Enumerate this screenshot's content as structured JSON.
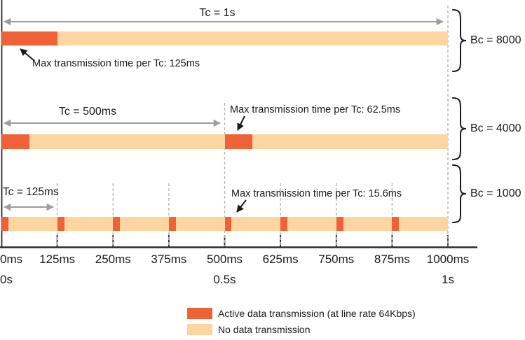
{
  "diagram": {
    "description": "Traffic shaping committed burst timing diagram",
    "total_ms": 1000
  },
  "rows": [
    {
      "tc_label": "Tc = 1s",
      "annotation": "Max transmission time per Tc: 125ms",
      "bc_label": "Bc = 8000",
      "tc_ms": 1000,
      "burst_ms": 125,
      "burst_starts_ms": [
        0
      ]
    },
    {
      "tc_label": "Tc = 500ms",
      "annotation": "Max transmission time per Tc: 62.5ms",
      "bc_label": "Bc = 4000",
      "tc_ms": 500,
      "burst_ms": 62.5,
      "burst_starts_ms": [
        0,
        500
      ]
    },
    {
      "tc_label": "Tc = 125ms",
      "annotation": "Max transmission time per Tc: 15.6ms",
      "bc_label": "Bc = 1000",
      "tc_ms": 125,
      "burst_ms": 15.6,
      "burst_starts_ms": [
        0,
        125,
        250,
        375,
        500,
        625,
        750,
        875
      ]
    }
  ],
  "axis": {
    "ticks": [
      {
        "ms": 0,
        "label": "0ms"
      },
      {
        "ms": 125,
        "label": "125ms"
      },
      {
        "ms": 250,
        "label": "250ms"
      },
      {
        "ms": 375,
        "label": "375ms"
      },
      {
        "ms": 500,
        "label": "500ms"
      },
      {
        "ms": 625,
        "label": "625ms"
      },
      {
        "ms": 750,
        "label": "750ms"
      },
      {
        "ms": 875,
        "label": "875ms"
      },
      {
        "ms": 1000,
        "label": "1000ms"
      }
    ],
    "seconds": [
      {
        "ms": 0,
        "label": "0s"
      },
      {
        "ms": 500,
        "label": "0.5s"
      },
      {
        "ms": 1000,
        "label": "1s"
      }
    ]
  },
  "legend": [
    {
      "key": "active",
      "label": "Active data transmission (at line rate 64Kbps)",
      "color": "#EF6237"
    },
    {
      "key": "idle",
      "label": "No data transmission",
      "color": "#FDD5A0"
    }
  ],
  "colors": {
    "active": "#EF6237",
    "idle": "#FDD5A0",
    "arrow_gray": "#9E9E9E",
    "dashed_gray": "#B5B5B5",
    "ink": "#1A1A1A"
  }
}
